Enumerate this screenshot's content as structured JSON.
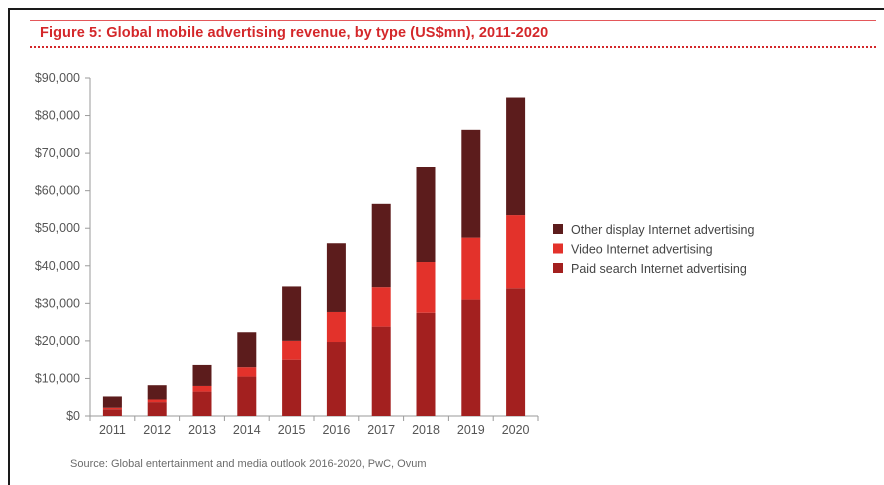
{
  "figure": {
    "title": "Figure 5: Global mobile advertising revenue, by type (US$mn), 2011-2020",
    "source": "Source: Global entertainment and media outlook 2016-2020, PwC, Ovum"
  },
  "chart_data": {
    "type": "bar",
    "stacked": true,
    "title": "Figure 5: Global mobile advertising revenue, by type (US$mn), 2011-2020",
    "xlabel": "",
    "ylabel": "",
    "categories": [
      "2011",
      "2012",
      "2013",
      "2014",
      "2015",
      "2016",
      "2017",
      "2018",
      "2019",
      "2020"
    ],
    "ylim": [
      0,
      90000
    ],
    "ytick_values": [
      0,
      10000,
      20000,
      30000,
      40000,
      50000,
      60000,
      70000,
      80000,
      90000
    ],
    "ytick_labels": [
      "$0",
      "$10,000",
      "$20,000",
      "$30,000",
      "$40,000",
      "$50,000",
      "$60,000",
      "$70,000",
      "$80,000",
      "$90,000"
    ],
    "grid": false,
    "legend_position": "right",
    "series": [
      {
        "name": "Paid search Internet advertising",
        "color": "#a3201f",
        "values": [
          1800,
          3700,
          6500,
          10500,
          15000,
          19700,
          23800,
          27500,
          31000,
          34000
        ]
      },
      {
        "name": "Video Internet advertising",
        "color": "#e3322b",
        "values": [
          400,
          700,
          1500,
          2500,
          5000,
          8000,
          10500,
          13500,
          16500,
          19500
        ]
      },
      {
        "name": "Other display Internet advertising",
        "color": "#5c1c1c",
        "values": [
          3000,
          3800,
          5600,
          9300,
          14500,
          18300,
          22200,
          25300,
          28700,
          31300
        ]
      }
    ],
    "legend_order": [
      "Other display Internet advertising",
      "Video Internet advertising",
      "Paid search Internet advertising"
    ]
  }
}
